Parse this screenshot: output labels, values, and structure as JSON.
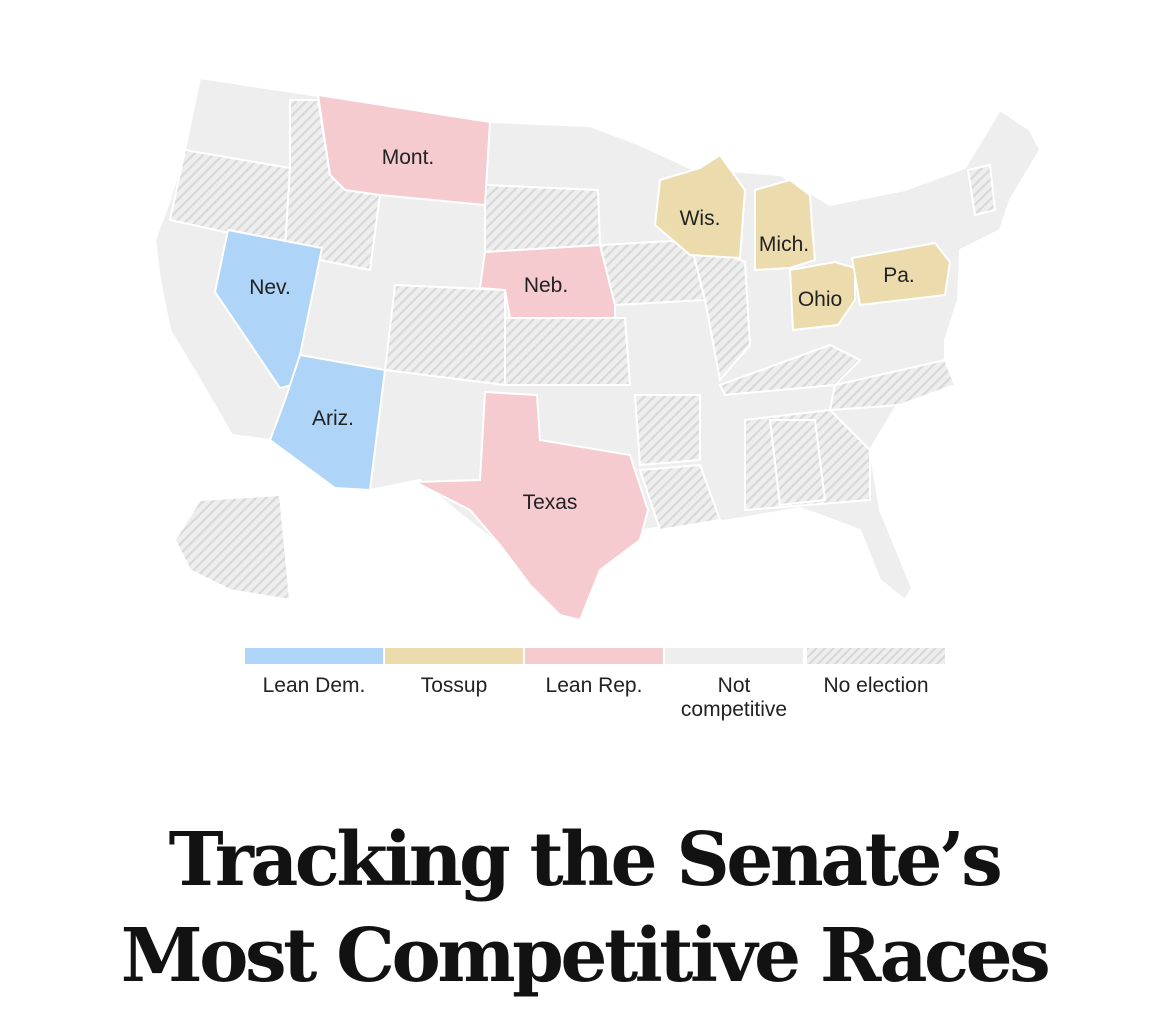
{
  "colors": {
    "lean_dem": "#aed4f7",
    "tossup": "#ecdcad",
    "lean_rep": "#f5cbd0",
    "not_competitive": "#eeeeee",
    "no_election_base": "#eeeeee",
    "no_election_stripe": "#d8d8d8",
    "border": "#ffffff"
  },
  "map": {
    "states": [
      {
        "abbr": "Mont.",
        "rating": "lean_rep"
      },
      {
        "abbr": "Wis.",
        "rating": "tossup"
      },
      {
        "abbr": "Mich.",
        "rating": "tossup"
      },
      {
        "abbr": "Nev.",
        "rating": "lean_dem"
      },
      {
        "abbr": "Neb.",
        "rating": "lean_rep"
      },
      {
        "abbr": "Pa.",
        "rating": "tossup"
      },
      {
        "abbr": "Ohio",
        "rating": "tossup"
      },
      {
        "abbr": "Ariz.",
        "rating": "lean_dem"
      },
      {
        "abbr": "Texas",
        "rating": "lean_rep"
      }
    ]
  },
  "legend": {
    "items": [
      {
        "label": "Lean Dem.",
        "key": "lean_dem"
      },
      {
        "label": "Tossup",
        "key": "tossup"
      },
      {
        "label": "Lean Rep.",
        "key": "lean_rep"
      },
      {
        "label": "Not competitive",
        "key": "not_competitive"
      },
      {
        "label": "No election",
        "key": "no_election"
      }
    ]
  },
  "headline": {
    "line1": "Tracking the Senate’s",
    "line2": "Most Competitive Races"
  }
}
